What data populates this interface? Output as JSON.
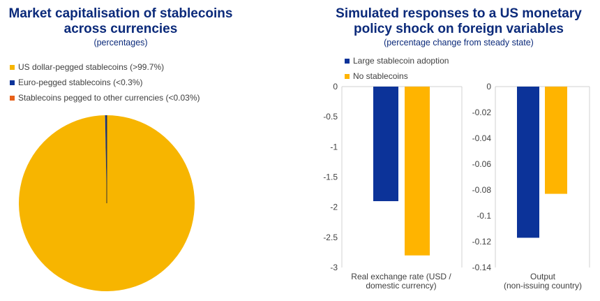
{
  "pie_chart": {
    "title": "Market capitalisation of stablecoins across currencies",
    "subtitle": "(percentages)"
  },
  "bar_chart": {
    "title": "Simulated responses to a US monetary policy shock on foreign variables",
    "subtitle": "(percentage change from steady state)"
  },
  "colors": {
    "usd": "#f7b500",
    "eur": "#0c3399",
    "other": "#e8611a",
    "large": "#0c3399",
    "none": "#ffb400"
  },
  "chart_data": [
    {
      "type": "pie",
      "title": "Market capitalisation of stablecoins across currencies",
      "subtitle": "(percentages)",
      "legend_position": "top-left",
      "slices": [
        {
          "label": "US dollar-pegged stablecoins (>99.7%)",
          "value": 99.7
        },
        {
          "label": "Euro-pegged stablecoins (<0.3%)",
          "value": 0.27
        },
        {
          "label": "Stablecoins pegged to other currencies (<0.03%)",
          "value": 0.03
        }
      ]
    },
    {
      "type": "bar",
      "title": "Simulated responses to a US monetary policy shock on foreign variables",
      "subtitle": "(percentage change from steady state)",
      "legend_position": "top-left",
      "series_names": [
        "Large stablecoin adoption",
        "No stablecoins"
      ],
      "panels": [
        {
          "category": "Real exchange rate (USD / domestic currency)",
          "category_lines": [
            "Real exchange rate (USD /",
            "domestic currency)"
          ],
          "ylim": [
            -3,
            0
          ],
          "ticks": [
            "0",
            "-0.5",
            "-1",
            "-1.5",
            "-2",
            "-2.5",
            "-3"
          ],
          "tick_values": [
            0,
            -0.5,
            -1,
            -1.5,
            -2,
            -2.5,
            -3
          ],
          "values": [
            -1.9,
            -2.8
          ]
        },
        {
          "category": "Output (non-issuing country)",
          "category_lines": [
            "Output",
            "(non-issuing country)"
          ],
          "ylim": [
            -0.14,
            0
          ],
          "ticks": [
            "0",
            "-0.02",
            "-0.04",
            "-0.06",
            "-0.08",
            "-0.1",
            "-0.12",
            "-0.14"
          ],
          "tick_values": [
            0,
            -0.02,
            -0.04,
            -0.06,
            -0.08,
            -0.1,
            -0.12,
            -0.14
          ],
          "values": [
            -0.117,
            -0.083
          ]
        }
      ]
    }
  ]
}
